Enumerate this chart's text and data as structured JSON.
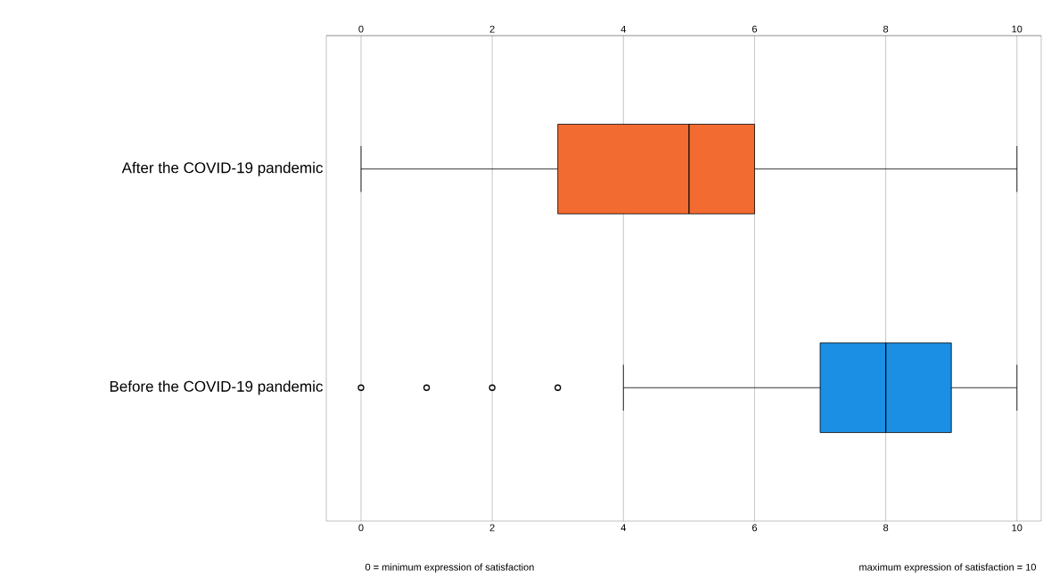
{
  "chart_data": {
    "type": "box",
    "orientation": "horizontal",
    "categories": [
      "After the COVID-19 pandemic",
      "Before the COVID-19 pandemic"
    ],
    "boxes": [
      {
        "low": 0,
        "q1": 3,
        "median": 5,
        "q3": 6,
        "high": 10
      },
      {
        "low": 4,
        "q1": 7,
        "median": 8,
        "q3": 9,
        "high": 10,
        "outliers": [
          0,
          1,
          2,
          3
        ]
      }
    ],
    "colors": [
      "#f26b30",
      "#1a8fe3"
    ],
    "xlim": [
      -0.53,
      10.37
    ],
    "xticks": [
      0,
      2,
      4,
      6,
      8,
      10
    ],
    "x2lim": [
      -0.53,
      10.37
    ],
    "x2ticks": [
      0,
      2,
      4,
      6,
      8,
      10
    ],
    "grid": "x",
    "marker": "circle",
    "annotations": [
      "0 = minimum expression of satisfaction",
      "maximum expression of satisfaction = 10"
    ]
  }
}
